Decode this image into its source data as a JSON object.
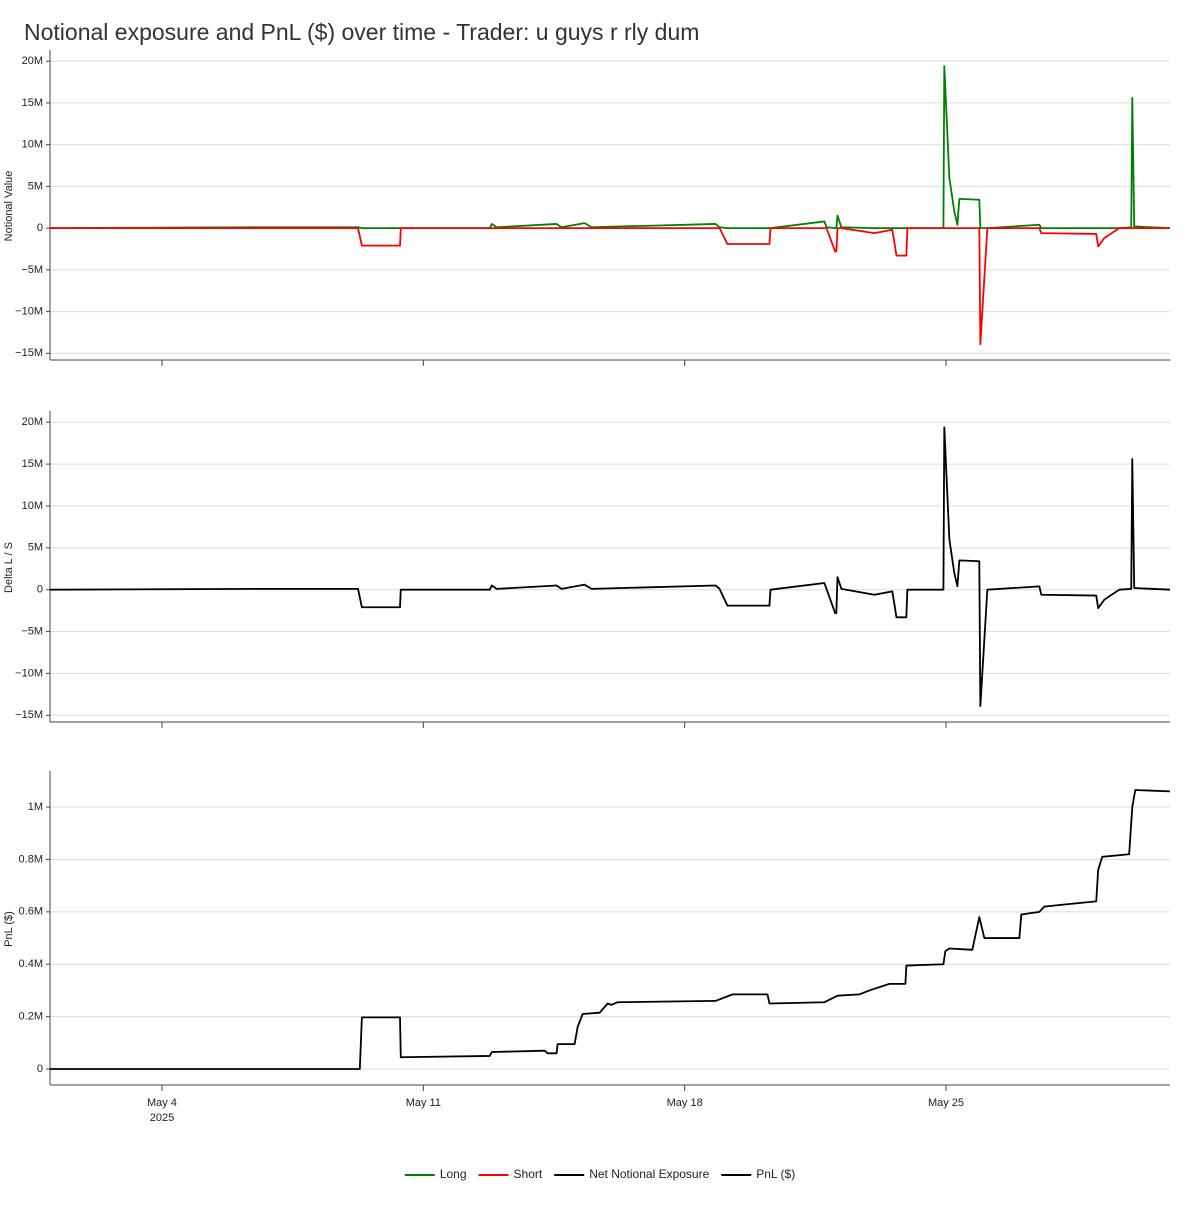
{
  "chart_data": [
    {
      "type": "line",
      "title": "Notional exposure and PnL ($) over time - Trader: u guys r rly dum",
      "ylabel": "Notional Value",
      "grid": true,
      "ylim": [
        -15800000,
        21100000
      ],
      "yticks": [
        {
          "value": -15000000,
          "label": "−15M"
        },
        {
          "value": -10000000,
          "label": "−10M"
        },
        {
          "value": -5000000,
          "label": "−5M"
        },
        0,
        {
          "value": 5000000,
          "label": "5M"
        },
        {
          "value": 10000000,
          "label": "10M"
        },
        {
          "value": 15000000,
          "label": "15M"
        },
        {
          "value": 20000000,
          "label": "20M"
        }
      ],
      "x": [
        "2025-05-01T00:00",
        "2025-05-06T20:00",
        "2025-05-09T06:00",
        "2025-05-09T08:30",
        "2025-05-10T09:00",
        "2025-05-10T09:30",
        "2025-05-12T18:40",
        "2025-05-12T20:00",
        "2025-05-12T23:10",
        "2025-05-14T13:40",
        "2025-05-14T16:50",
        "2025-05-15T07:40",
        "2025-05-15T12:10",
        "2025-05-18T19:50",
        "2025-05-18T22:25",
        "2025-05-19T03:30",
        "2025-05-20T06:30",
        "2025-05-20T07:10",
        "2025-05-21T17:50",
        "2025-05-21T19:10",
        "2025-05-22T00:45",
        "2025-05-22T01:30",
        "2025-05-22T02:15",
        "2025-05-22T04:45",
        "2025-05-23T02:00",
        "2025-05-23T13:30",
        "2025-05-23T16:10",
        "2025-05-23T22:30",
        "2025-05-23T23:10",
        "2025-05-24T22:20",
        "2025-05-24T22:55",
        "2025-05-25T02:10",
        "2025-05-25T05:20",
        "2025-05-25T07:20",
        "2025-05-25T08:35",
        "2025-05-25T21:25",
        "2025-05-25T22:05",
        "2025-05-26T02:35",
        "2025-05-27T12:00",
        "2025-05-27T13:15",
        "2025-05-29T00:35",
        "2025-05-29T01:50",
        "2025-05-29T05:45",
        "2025-05-29T15:20",
        "2025-05-29T23:05",
        "2025-05-29T23:45",
        "2025-05-30T01:00",
        "2025-05-31T00:00"
      ],
      "series": [
        {
          "name": "Long",
          "color": "#008000",
          "values": [
            0,
            100000,
            100000,
            0,
            0,
            0,
            0,
            500000,
            100000,
            500000,
            100000,
            600000,
            100000,
            500000,
            100000,
            0,
            0,
            0,
            800000,
            100000,
            0,
            0,
            1500000,
            100000,
            0,
            0,
            0,
            0,
            0,
            0,
            19400000,
            6000000,
            2000000,
            400000,
            3500000,
            3400000,
            0,
            0,
            400000,
            0,
            0,
            0,
            0,
            0,
            100000,
            15600000,
            200000,
            0
          ]
        },
        {
          "name": "Short",
          "color": "#ff0000",
          "values": [
            0,
            0,
            0,
            -2100000,
            -2100000,
            0,
            0,
            0,
            0,
            0,
            0,
            0,
            0,
            0,
            0,
            -1900000,
            -1900000,
            0,
            0,
            0,
            -2800000,
            -2800000,
            0,
            0,
            -600000,
            -200000,
            -3300000,
            -3300000,
            0,
            0,
            0,
            0,
            0,
            0,
            0,
            0,
            -13900000,
            0,
            0,
            -600000,
            -700000,
            -2200000,
            -1200000,
            0,
            0,
            0,
            0,
            0
          ]
        }
      ]
    },
    {
      "type": "line",
      "ylabel": "Delta L / S",
      "grid": true,
      "ylim": [
        -15800000,
        21100000
      ],
      "yticks": [
        {
          "value": -15000000,
          "label": "−15M"
        },
        {
          "value": -10000000,
          "label": "−10M"
        },
        {
          "value": -5000000,
          "label": "−5M"
        },
        0,
        {
          "value": 5000000,
          "label": "5M"
        },
        {
          "value": 10000000,
          "label": "10M"
        },
        {
          "value": 15000000,
          "label": "15M"
        },
        {
          "value": 20000000,
          "label": "20M"
        }
      ],
      "x": [
        "2025-05-01T00:00",
        "2025-05-06T20:00",
        "2025-05-09T06:00",
        "2025-05-09T08:30",
        "2025-05-10T09:00",
        "2025-05-10T09:30",
        "2025-05-12T18:40",
        "2025-05-12T20:00",
        "2025-05-12T23:10",
        "2025-05-14T13:40",
        "2025-05-14T16:50",
        "2025-05-15T07:40",
        "2025-05-15T12:10",
        "2025-05-18T19:50",
        "2025-05-18T22:25",
        "2025-05-19T03:30",
        "2025-05-20T06:30",
        "2025-05-20T07:10",
        "2025-05-21T17:50",
        "2025-05-21T19:10",
        "2025-05-22T00:45",
        "2025-05-22T01:30",
        "2025-05-22T02:15",
        "2025-05-22T04:45",
        "2025-05-23T02:00",
        "2025-05-23T13:30",
        "2025-05-23T16:10",
        "2025-05-23T22:30",
        "2025-05-23T23:10",
        "2025-05-24T22:20",
        "2025-05-24T22:55",
        "2025-05-25T02:10",
        "2025-05-25T05:20",
        "2025-05-25T07:20",
        "2025-05-25T08:35",
        "2025-05-25T21:25",
        "2025-05-25T22:05",
        "2025-05-26T02:35",
        "2025-05-27T12:00",
        "2025-05-27T13:15",
        "2025-05-29T00:35",
        "2025-05-29T01:50",
        "2025-05-29T05:45",
        "2025-05-29T15:20",
        "2025-05-29T23:05",
        "2025-05-29T23:45",
        "2025-05-30T01:00",
        "2025-05-31T00:00"
      ],
      "series": [
        {
          "name": "Net Notional Exposure",
          "color": "#000000",
          "values": [
            0,
            100000,
            100000,
            -2100000,
            -2100000,
            0,
            0,
            500000,
            100000,
            500000,
            100000,
            600000,
            100000,
            500000,
            100000,
            -1900000,
            -1900000,
            0,
            800000,
            100000,
            -2800000,
            -2800000,
            1500000,
            100000,
            -600000,
            -200000,
            -3300000,
            -3300000,
            0,
            0,
            19400000,
            6000000,
            2000000,
            400000,
            3500000,
            3400000,
            -13900000,
            0,
            400000,
            -600000,
            -700000,
            -2200000,
            -1200000,
            0,
            100000,
            15600000,
            200000,
            0
          ]
        }
      ]
    },
    {
      "type": "line",
      "ylabel": "PnL ($)",
      "grid": true,
      "ylim": [
        -61000,
        1130000
      ],
      "yticks": [
        0,
        {
          "value": 200000,
          "label": "0.2M"
        },
        {
          "value": 400000,
          "label": "0.4M"
        },
        {
          "value": 600000,
          "label": "0.6M"
        },
        {
          "value": 800000,
          "label": "0.8M"
        },
        {
          "value": 1000000,
          "label": "1M"
        }
      ],
      "xlim": [
        "2025-05-01T00:00",
        "2025-05-31T00:00"
      ],
      "xticks": [
        {
          "value": "2025-05-04T00:00",
          "label": "May 4"
        },
        {
          "value": "2025-05-11T00:00",
          "label": "May 11"
        },
        {
          "value": "2025-05-18T00:00",
          "label": "May 18"
        },
        {
          "value": "2025-05-25T00:00",
          "label": "May 25"
        }
      ],
      "x_year": "2025",
      "x": [
        "2025-05-01T00:00",
        "2025-05-09T07:10",
        "2025-05-09T08:30",
        "2025-05-10T09:00",
        "2025-05-10T09:30",
        "2025-05-12T18:40",
        "2025-05-12T20:00",
        "2025-05-14T06:00",
        "2025-05-14T07:55",
        "2025-05-14T13:40",
        "2025-05-14T14:20",
        "2025-05-15T01:15",
        "2025-05-15T03:10",
        "2025-05-15T06:25",
        "2025-05-15T17:20",
        "2025-05-15T22:30",
        "2025-05-16T01:00",
        "2025-05-16T04:50",
        "2025-05-18T19:50",
        "2025-05-19T06:45",
        "2025-05-20T05:15",
        "2025-05-20T06:30",
        "2025-05-21T17:50",
        "2025-05-22T02:15",
        "2025-05-22T16:20",
        "2025-05-22T22:45",
        "2025-05-23T11:35",
        "2025-05-23T21:55",
        "2025-05-23T22:30",
        "2025-05-24T22:20",
        "2025-05-24T23:35",
        "2025-05-25T02:10",
        "2025-05-25T16:55",
        "2025-05-25T21:25",
        "2025-05-26T00:40",
        "2025-05-26T23:10",
        "2025-05-27T00:25",
        "2025-05-27T12:00",
        "2025-05-27T15:10",
        "2025-05-28T07:15",
        "2025-05-29T00:35",
        "2025-05-29T01:50",
        "2025-05-29T04:25",
        "2025-05-29T21:45",
        "2025-05-29T23:45",
        "2025-05-30T01:40",
        "2025-05-31T00:00"
      ],
      "series": [
        {
          "name": "PnL ($)",
          "color": "#000000",
          "values": [
            0,
            0,
            197000,
            197000,
            45000,
            50000,
            65000,
            70000,
            60000,
            60000,
            95000,
            95000,
            160000,
            210000,
            215000,
            250000,
            245000,
            255000,
            260000,
            285000,
            285000,
            250000,
            255000,
            280000,
            285000,
            300000,
            325000,
            325000,
            395000,
            400000,
            450000,
            460000,
            455000,
            580000,
            500000,
            500000,
            590000,
            600000,
            620000,
            630000,
            640000,
            760000,
            810000,
            820000,
            1000000,
            1065000,
            1060000
          ]
        }
      ]
    }
  ]
}
